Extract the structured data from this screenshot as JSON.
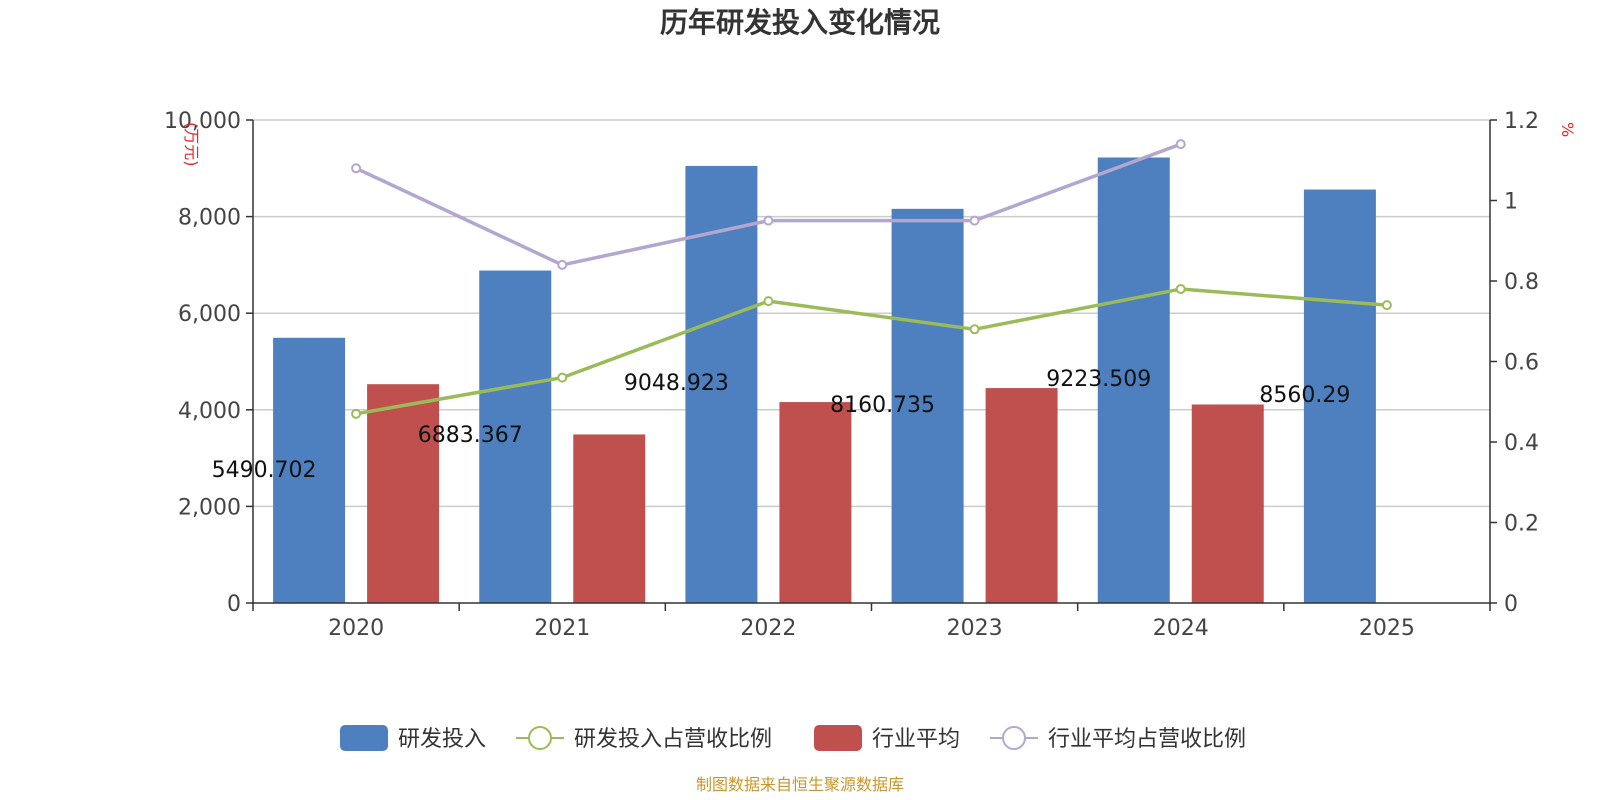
{
  "chart_data": {
    "type": "bar",
    "title": "历年研发投入变化情况",
    "categories": [
      "2020",
      "2021",
      "2022",
      "2023",
      "2024",
      "2025"
    ],
    "y_left": {
      "label": "(万元)",
      "ylim": [
        0,
        10000
      ],
      "ticks": [
        "0",
        "2,000",
        "4,000",
        "6,000",
        "8,000",
        "10,000"
      ],
      "tick_values": [
        0,
        2000,
        4000,
        6000,
        8000,
        10000
      ]
    },
    "y_right": {
      "label": "%",
      "ylim": [
        0,
        1.2
      ],
      "ticks": [
        "0",
        "0.2",
        "0.4",
        "0.6",
        "0.8",
        "1",
        "1.2"
      ],
      "tick_values": [
        0,
        0.2,
        0.4,
        0.6,
        0.8,
        1.0,
        1.2
      ]
    },
    "grid": true,
    "series": [
      {
        "name": "研发投入",
        "type": "bar",
        "axis": "left",
        "color": "#4e7fbf",
        "values": [
          5490.702,
          6883.367,
          9048.923,
          8160.735,
          9223.509,
          8560.29
        ],
        "labels": [
          "5490.702",
          "6883.367",
          "9048.923",
          "8160.735",
          "9223.509",
          "8560.29"
        ]
      },
      {
        "name": "研发投入占营收比例",
        "type": "line",
        "axis": "right",
        "color": "#9bbb59",
        "values": [
          0.47,
          0.56,
          0.75,
          0.68,
          0.78,
          0.74
        ]
      },
      {
        "name": "行业平均",
        "type": "bar",
        "axis": "left",
        "color": "#c0504d",
        "values": [
          4530,
          3490,
          4160,
          4450,
          4110,
          null
        ]
      },
      {
        "name": "行业平均占营收比例",
        "type": "line",
        "axis": "right",
        "color": "#b3a6cf",
        "values": [
          1.08,
          0.84,
          0.95,
          0.95,
          1.14,
          null
        ]
      }
    ],
    "legend_position": "bottom",
    "source": "制图数据来自恒生聚源数据库"
  },
  "colors": {
    "unit": "#e8252a",
    "source": "#c9962b",
    "axis": "#333333",
    "grid": "#cccccc"
  }
}
